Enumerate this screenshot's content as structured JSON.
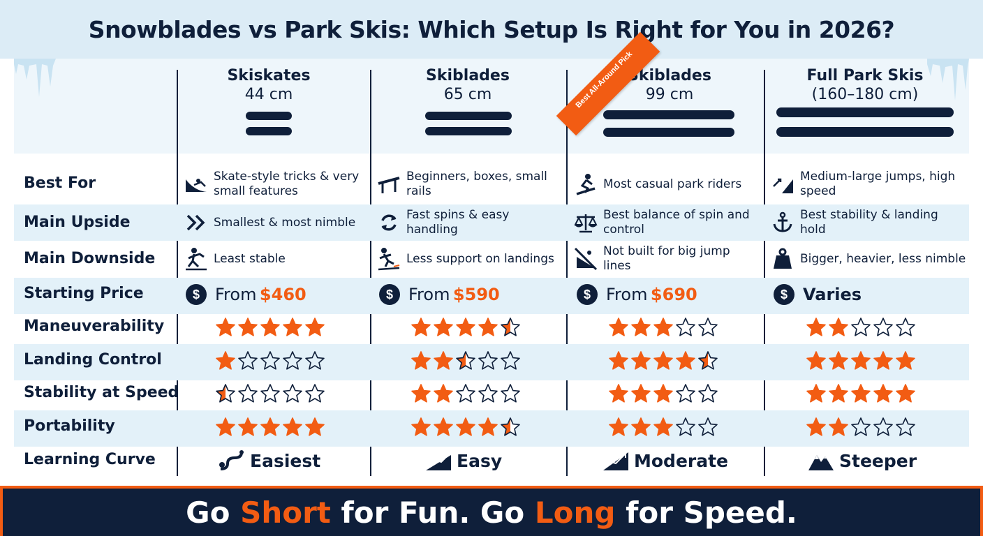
{
  "title": "Snowblades vs Park Skis: Which Setup Is Right for You in 2026?",
  "ribbon": "Best All-Around Pick",
  "columns": [
    {
      "name": "Skiskates",
      "size": "44 cm"
    },
    {
      "name": "Skiblades",
      "size": "65 cm"
    },
    {
      "name": "Skiblades",
      "size": "99 cm"
    },
    {
      "name": "Full Park Skis",
      "size": "(160–180 cm)"
    }
  ],
  "rows": {
    "best_for": {
      "label": "Best For",
      "cells": [
        {
          "icon": "ramp-icon",
          "text": "Skate-style tricks & very small features"
        },
        {
          "icon": "rail-icon",
          "text": "Beginners, boxes, small rails"
        },
        {
          "icon": "snowboarder-icon",
          "text": "Most casual park riders"
        },
        {
          "icon": "jump-icon",
          "text": "Medium-large jumps, high speed"
        }
      ]
    },
    "main_upside": {
      "label": "Main Upside",
      "cells": [
        {
          "icon": "double-chevron-icon",
          "text": "Smallest & most nimble"
        },
        {
          "icon": "rotate-icon",
          "text": "Fast spins & easy handling"
        },
        {
          "icon": "balance-scale-icon",
          "text": "Best balance of spin and control"
        },
        {
          "icon": "anchor-icon",
          "text": "Best stability & landing hold"
        }
      ]
    },
    "main_downside": {
      "label": "Main Downside",
      "cells": [
        {
          "icon": "falling-person-icon",
          "text": "Least stable"
        },
        {
          "icon": "slipping-person-icon",
          "text": "Less support on landings"
        },
        {
          "icon": "no-jump-icon",
          "text": "Not built for big jump lines"
        },
        {
          "icon": "weight-icon",
          "text": "Bigger, heavier, less nimble"
        }
      ]
    },
    "starting_price": {
      "label": "Starting Price",
      "dollar": "$",
      "from": "From",
      "cells": [
        {
          "amount": "$460"
        },
        {
          "amount": "$590"
        },
        {
          "amount": "$690"
        },
        {
          "text": "Varies"
        }
      ]
    },
    "ratings": [
      {
        "label": "Maneuverability",
        "values": [
          5,
          4.5,
          3,
          2
        ]
      },
      {
        "label": "Landing Control",
        "values": [
          1,
          2.5,
          4.5,
          5
        ]
      },
      {
        "label": "Stability at Speed",
        "values": [
          0.5,
          2,
          3,
          5
        ]
      },
      {
        "label": "Portability",
        "values": [
          5,
          4.5,
          3,
          2
        ]
      }
    ],
    "learning_curve": {
      "label": "Learning Curve",
      "cells": [
        {
          "icon": "winding-path-icon",
          "text": "Easiest"
        },
        {
          "icon": "gentle-slope-icon",
          "text": "Easy"
        },
        {
          "icon": "rising-slope-icon",
          "text": "Moderate"
        },
        {
          "icon": "mountain-icon",
          "text": "Steeper"
        }
      ]
    }
  },
  "footer": {
    "part1": "Go ",
    "accent1": "Short",
    "part2": " for Fun. Go ",
    "accent2": "Long",
    "part3": " for Speed."
  },
  "colors": {
    "navy": "#0f1f3a",
    "orange": "#f25c13",
    "shade": "#e3f1f9",
    "title_band": "#dcecf6"
  }
}
